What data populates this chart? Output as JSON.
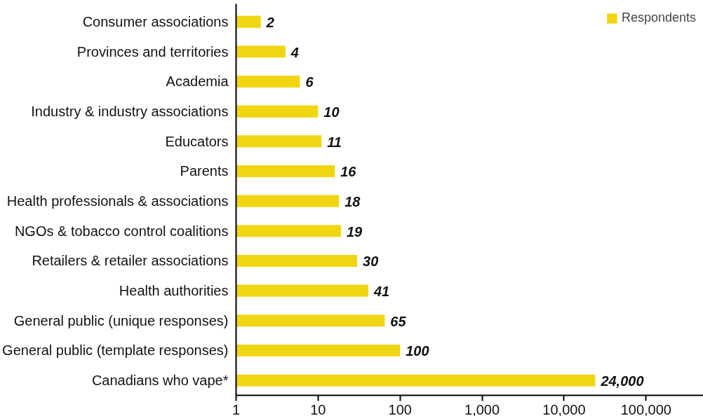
{
  "chart_data": {
    "type": "bar",
    "orientation": "horizontal",
    "categories": [
      "Consumer associations",
      "Provinces and territories",
      "Academia",
      "Industry & industry associations",
      "Educators",
      "Parents",
      "Health professionals & associations",
      "NGOs & tobacco control coalitions",
      "Retailers & retailer associations",
      "Health authorities",
      "General public (unique responses)",
      "General public (template responses)",
      "Canadians who vape*"
    ],
    "series": [
      {
        "name": "Respondents",
        "color": "#f0d612",
        "values": [
          2,
          4,
          6,
          10,
          11,
          16,
          18,
          19,
          30,
          41,
          65,
          100,
          24000
        ],
        "value_labels": [
          "2",
          "4",
          "6",
          "10",
          "11",
          "16",
          "18",
          "19",
          "30",
          "41",
          "65",
          "100",
          "24,000"
        ]
      }
    ],
    "log": "x",
    "xlim": [
      1,
      500000
    ],
    "xticks": [
      1,
      10,
      100,
      {
        "value": 1000,
        "label": "1,000"
      },
      {
        "value": 10000,
        "label": "10,000"
      },
      {
        "value": 100000,
        "label": "100,000"
      }
    ],
    "grid": false,
    "legend": "top right"
  }
}
